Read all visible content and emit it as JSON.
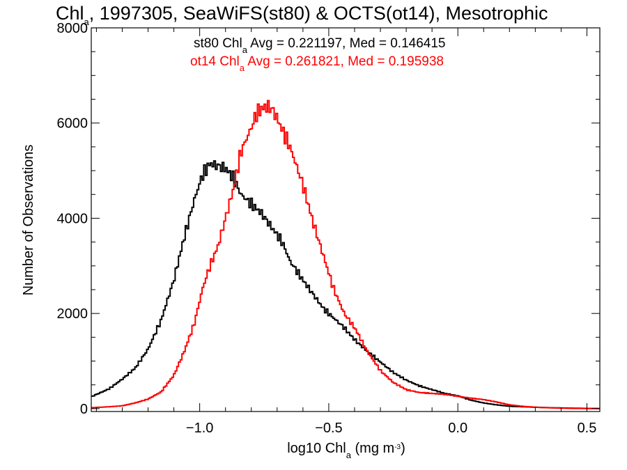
{
  "chart_data": {
    "type": "line",
    "step": true,
    "title": {
      "pre": "Chl",
      "sub": "a",
      "post": ", 1997305, SeaWiFS(st80) & OCTS(ot14), Mesotrophic"
    },
    "xlabel": {
      "pre": "log10 Chl",
      "sub": "a",
      "mid": " (mg m",
      "sup": "-3",
      "post": ")"
    },
    "ylabel": "Number of Observations",
    "xlim": [
      -1.42,
      0.55
    ],
    "ylim": [
      -60,
      8000
    ],
    "xticks": [
      -1.0,
      -0.5,
      0.0,
      0.5
    ],
    "xtick_labels": [
      "−1.0",
      "−0.5",
      "0.0",
      "0.5"
    ],
    "yticks": [
      0,
      2000,
      4000,
      6000,
      8000
    ],
    "ytick_labels": [
      "0",
      "2000",
      "4000",
      "6000",
      "8000"
    ],
    "grid": false,
    "annotations": [
      {
        "pre": "st80 Chl",
        "sub": "a",
        "post": " Avg = 0.221197, Med = 0.146415",
        "color": "#000000"
      },
      {
        "pre": "ot14 Chl",
        "sub": "a",
        "post": " Avg = 0.261821, Med = 0.195938",
        "color": "#ff0000"
      }
    ],
    "series": [
      {
        "color": "#000000",
        "x": [
          -1.42,
          -1.35,
          -1.3,
          -1.25,
          -1.2,
          -1.15,
          -1.1,
          -1.06,
          -1.02,
          -0.99,
          -0.96,
          -0.93,
          -0.9,
          -0.87,
          -0.84,
          -0.8,
          -0.76,
          -0.72,
          -0.68,
          -0.65,
          -0.6,
          -0.56,
          -0.52,
          -0.48,
          -0.44,
          -0.4,
          -0.35,
          -0.3,
          -0.25,
          -0.2,
          -0.15,
          -0.1,
          -0.05,
          0.0,
          0.05,
          0.1,
          0.15,
          0.2,
          0.25,
          0.3,
          0.35,
          0.4,
          0.45,
          0.5,
          0.55
        ],
        "y": [
          250,
          420,
          620,
          850,
          1250,
          1850,
          2700,
          3600,
          4400,
          4900,
          5150,
          5100,
          5050,
          4850,
          4500,
          4300,
          4100,
          3800,
          3500,
          3100,
          2700,
          2400,
          2100,
          1900,
          1700,
          1450,
          1200,
          980,
          760,
          600,
          480,
          400,
          320,
          270,
          180,
          120,
          80,
          50,
          40,
          30,
          20,
          15,
          10,
          5,
          3
        ]
      },
      {
        "color": "#ff0000",
        "x": [
          -1.42,
          -1.35,
          -1.3,
          -1.25,
          -1.2,
          -1.15,
          -1.1,
          -1.06,
          -1.02,
          -0.99,
          -0.96,
          -0.93,
          -0.9,
          -0.87,
          -0.84,
          -0.8,
          -0.78,
          -0.76,
          -0.74,
          -0.72,
          -0.7,
          -0.68,
          -0.65,
          -0.6,
          -0.56,
          -0.52,
          -0.48,
          -0.44,
          -0.4,
          -0.35,
          -0.3,
          -0.25,
          -0.2,
          -0.15,
          -0.1,
          -0.05,
          0.0,
          0.05,
          0.1,
          0.15,
          0.2,
          0.25,
          0.3,
          0.35,
          0.4,
          0.45,
          0.5,
          0.55
        ],
        "y": [
          20,
          40,
          60,
          120,
          200,
          350,
          700,
          1200,
          1800,
          2500,
          3000,
          3400,
          4000,
          4600,
          5400,
          5900,
          6200,
          6300,
          6350,
          6300,
          6100,
          5850,
          5500,
          4700,
          3900,
          3200,
          2500,
          2000,
          1700,
          1200,
          800,
          550,
          400,
          340,
          320,
          300,
          260,
          220,
          190,
          140,
          80,
          50,
          30,
          20,
          10,
          5,
          3,
          2
        ]
      }
    ]
  }
}
